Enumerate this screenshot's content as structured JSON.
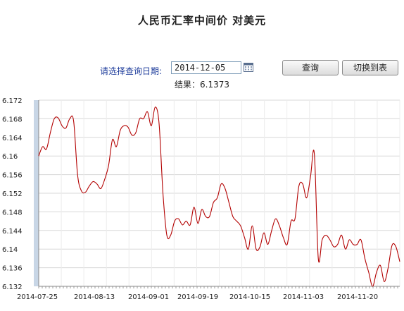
{
  "page": {
    "title": "人民币汇率中间价 对美元"
  },
  "form": {
    "date_label": "请选择查询日期:",
    "date_value": "2014-12-05",
    "query_button": "查询",
    "switch_button": "切换到表",
    "result_text": "结果：6.1373"
  },
  "icons": {
    "calendar": "calendar-icon"
  },
  "colors": {
    "line": "#b30000",
    "grid": "#d8d8d8",
    "label_blue": "#1b3a9a"
  },
  "chart_data": {
    "type": "line",
    "title": "",
    "xlabel": "",
    "ylabel": "",
    "ylim": [
      6.132,
      6.172
    ],
    "y_ticks": [
      "6.172",
      "6.168",
      "6.164",
      "6.16",
      "6.156",
      "6.152",
      "6.148",
      "6.144",
      "6.14",
      "6.136",
      "6.132"
    ],
    "x_tick_labels": [
      "2014-07-25",
      "2014-08-13",
      "2014-09-01",
      "2014-09-19",
      "2014-10-15",
      "2014-11-03",
      "2014-11-20"
    ],
    "grid": true,
    "series": [
      {
        "values": [
          6.16,
          6.162,
          6.1615,
          6.165,
          6.168,
          6.1682,
          6.1665,
          6.166,
          6.168,
          6.1675,
          6.156,
          6.1525,
          6.1522,
          6.1535,
          6.1545,
          6.154,
          6.153,
          6.155,
          6.158,
          6.1635,
          6.162,
          6.1655,
          6.1665,
          6.1662,
          6.1645,
          6.165,
          6.168,
          6.168,
          6.1695,
          6.1665,
          6.1705,
          6.167,
          6.152,
          6.143,
          6.143,
          6.146,
          6.1465,
          6.1452,
          6.146,
          6.1452,
          6.149,
          6.1455,
          6.1485,
          6.147,
          6.147,
          6.15,
          6.151,
          6.154,
          6.153,
          6.15,
          6.147,
          6.146,
          6.145,
          6.1425,
          6.14,
          6.145,
          6.14,
          6.1405,
          6.1435,
          6.141,
          6.144,
          6.1465,
          6.145,
          6.1425,
          6.141,
          6.146,
          6.1465,
          6.1535,
          6.154,
          6.151,
          6.1555,
          6.1605,
          6.138,
          6.142,
          6.143,
          6.142,
          6.1405,
          6.141,
          6.143,
          6.14,
          6.142,
          6.141,
          6.141,
          6.142,
          6.138,
          6.135,
          6.132,
          6.135,
          6.1365,
          6.133,
          6.136,
          6.1408,
          6.1405,
          6.1373
        ]
      }
    ]
  }
}
